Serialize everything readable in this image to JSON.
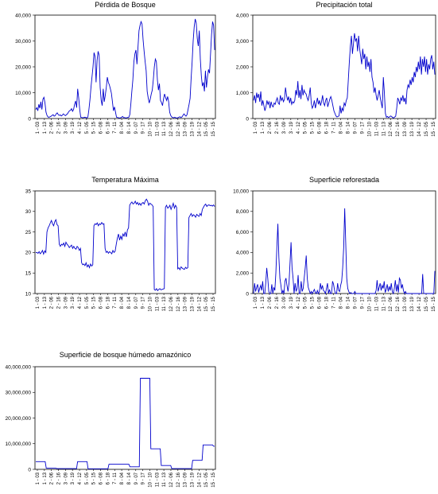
{
  "colors": {
    "series": "#0000cc",
    "axis": "#000000",
    "background": "#ffffff"
  },
  "x_tick_labels": [
    "1 - 03",
    "1 - 13",
    "2 - 06",
    "2 - 16",
    "3 - 09",
    "3 - 19",
    "4 - 12",
    "5 - 05",
    "5 - 15",
    "6 - 08",
    "6 - 18",
    "7 - 11",
    "8 - 04",
    "8 - 14",
    "9 - 07",
    "9 - 17",
    "10 - 10",
    "11 - 03",
    "11 - 13",
    "12 - 06",
    "12 - 16",
    "13 - 09",
    "13 - 19",
    "14 - 12",
    "15 - 05",
    "15 - 15"
  ],
  "chart_data": [
    {
      "type": "line",
      "title": "Pérdida de Bosque",
      "ylim": [
        0,
        40000
      ],
      "yticks": [
        0,
        10000,
        20000,
        30000,
        40000
      ],
      "ytick_labels": [
        "0",
        "10,000",
        "20,000",
        "30,000",
        "40,000"
      ],
      "series": [
        {
          "values": [
            3500,
            4200,
            3000,
            5500,
            4000,
            6500,
            3500,
            7500,
            8200,
            6000,
            2500,
            1200,
            600,
            500,
            700,
            900,
            1200,
            1500,
            900,
            1100,
            1800,
            2200,
            1500,
            1200,
            1400,
            1000,
            1300,
            1800,
            1400,
            1100,
            1500,
            1800,
            2500,
            3000,
            3200,
            3800,
            2800,
            3500,
            5500,
            6800,
            4200,
            11500,
            8000,
            3500,
            500,
            400,
            300,
            400,
            500,
            400,
            200,
            600,
            3500,
            7200,
            12000,
            16000,
            20000,
            25500,
            24000,
            14000,
            22500,
            26000,
            24500,
            12000,
            7000,
            5000,
            11500,
            6500,
            9000,
            12000,
            16000,
            14000,
            13000,
            11500,
            9800,
            6500,
            3000,
            4500,
            2500,
            500,
            400,
            300,
            200,
            300,
            500,
            800,
            300,
            400,
            200,
            300,
            400,
            500,
            1500,
            5500,
            10500,
            15000,
            22000,
            25000,
            26500,
            21000,
            27500,
            34000,
            36000,
            37500,
            36500,
            30500,
            26000,
            22000,
            18500,
            10500,
            8000,
            6000,
            7500,
            9500,
            11000,
            15000,
            20000,
            23000,
            22000,
            15000,
            11000,
            13500,
            7000,
            6200,
            5000,
            7500,
            9500,
            8200,
            7000,
            8500,
            6500,
            2500,
            1200,
            600,
            400,
            300,
            500,
            300,
            200,
            300,
            500,
            700,
            400,
            600,
            1200,
            1800,
            1300,
            900,
            1500,
            3500,
            5500,
            7800,
            15500,
            22000,
            30000,
            35500,
            38500,
            37000,
            31000,
            28000,
            34000,
            23000,
            16500,
            12500,
            14000,
            10500,
            18500,
            12000,
            16000,
            19000,
            17500,
            25000,
            32500,
            37500,
            36000,
            26500
          ]
        }
      ]
    },
    {
      "type": "line",
      "title": "Precipitación total",
      "ylim": [
        0,
        4000
      ],
      "yticks": [
        0,
        1000,
        2000,
        3000,
        4000
      ],
      "ytick_labels": [
        "0",
        "1,000",
        "2,000",
        "3,000",
        "4,000"
      ],
      "series": [
        {
          "values": [
            700,
            900,
            600,
            1000,
            800,
            950,
            650,
            1050,
            500,
            700,
            500,
            300,
            450,
            700,
            550,
            650,
            400,
            650,
            500,
            450,
            600,
            550,
            700,
            800,
            600,
            550,
            900,
            700,
            800,
            650,
            750,
            1200,
            900,
            700,
            850,
            600,
            800,
            550,
            650,
            600,
            700,
            1100,
            900,
            1450,
            800,
            1100,
            750,
            1300,
            900,
            1100,
            1000,
            950,
            800,
            700,
            900,
            1200,
            600,
            400,
            500,
            700,
            400,
            600,
            800,
            550,
            700,
            500,
            650,
            900,
            600,
            500,
            700,
            800,
            450,
            600,
            750,
            850,
            700,
            500,
            300,
            200,
            100,
            60,
            80,
            100,
            500,
            200,
            400,
            300,
            600,
            500,
            700,
            800,
            1500,
            2200,
            2800,
            3200,
            2500,
            2900,
            3300,
            3000,
            3100,
            2600,
            3200,
            2700,
            2400,
            2100,
            2700,
            2300,
            2500,
            1900,
            2400,
            2000,
            2200,
            1800,
            2300,
            1600,
            1400,
            1000,
            1200,
            900,
            700,
            900,
            1100,
            800,
            600,
            400,
            1600,
            1000,
            200,
            50,
            80,
            40,
            60,
            100,
            80,
            40,
            20,
            60,
            90,
            400,
            800,
            700,
            550,
            800,
            700,
            900,
            650,
            800,
            550,
            1100,
            1300,
            1200,
            1500,
            1300,
            1600,
            1400,
            1800,
            1600,
            2000,
            1800,
            2200,
            1900,
            2400,
            1700,
            2300,
            2000,
            2400,
            1800,
            2300,
            1700,
            2100,
            1900,
            2300,
            2450,
            1900,
            2200,
            1700
          ]
        }
      ]
    },
    {
      "type": "line",
      "title": "Temperatura Máxima",
      "ylim": [
        10,
        35
      ],
      "yticks": [
        10,
        15,
        20,
        25,
        30,
        35
      ],
      "ytick_labels": [
        "10",
        "15",
        "20",
        "25",
        "30",
        "35"
      ],
      "series": [
        {
          "values": [
            20,
            20,
            19.8,
            20.2,
            19.7,
            20,
            20.5,
            19.6,
            20.4,
            20,
            25,
            26,
            26.5,
            27.2,
            27.8,
            27,
            26.5,
            27.5,
            28,
            26.8,
            26.5,
            22,
            21.5,
            22,
            21.8,
            22.3,
            21.5,
            22.5,
            22,
            21.7,
            21.2,
            21.5,
            21.8,
            21,
            21.5,
            21,
            20.8,
            21.5,
            21.2,
            20.5,
            21,
            17.5,
            17,
            17.2,
            16.8,
            17.5,
            16.5,
            17,
            16.3,
            17.2,
            16.7,
            17,
            26.5,
            27,
            26.8,
            27.2,
            26.5,
            27,
            26.8,
            27.3,
            26.9,
            27,
            21,
            20,
            20.3,
            19.8,
            20.2,
            20,
            19.7,
            20.5,
            20,
            20.3,
            22,
            23.5,
            24.5,
            23,
            24,
            23.2,
            24.5,
            24,
            25,
            23.8,
            25.5,
            26,
            31.5,
            32,
            32.3,
            31.8,
            32,
            32.5,
            31.8,
            32.2,
            31.6,
            32,
            31.5,
            32,
            32.2,
            31.8,
            32.6,
            33,
            32.5,
            31.5,
            32,
            31.8,
            31.6,
            31.2,
            11,
            10.8,
            11.2,
            10.7,
            11,
            11.2,
            10.9,
            11,
            11.1,
            11.2,
            31,
            31.5,
            30.8,
            31,
            31.5,
            30.5,
            31.2,
            32,
            30.8,
            31.5,
            31,
            16,
            16.3,
            15.8,
            16.5,
            16.2,
            16,
            15.9,
            16.4,
            16.1,
            16.3,
            28.5,
            29,
            29.5,
            28.8,
            29.2,
            29,
            28.6,
            29.3,
            29,
            28.8,
            29.5,
            29,
            30.5,
            31,
            31.5,
            31.8,
            31.2,
            31.5,
            31.6,
            31.4,
            31.5,
            31.3,
            31.6,
            31.2
          ]
        }
      ]
    },
    {
      "type": "line",
      "title": "Superficie reforestada",
      "ylim": [
        0,
        10000
      ],
      "yticks": [
        0,
        2000,
        4000,
        6000,
        8000,
        10000
      ],
      "ytick_labels": [
        "0",
        "2,000",
        "4,000",
        "6,000",
        "8,000",
        "10,000"
      ],
      "series": [
        {
          "values": [
            0,
            1000,
            200,
            600,
            900,
            100,
            500,
            800,
            300,
            1200,
            0,
            0,
            1000,
            2500,
            1500,
            200,
            0,
            0,
            900,
            0,
            600,
            300,
            2000,
            4500,
            6800,
            3500,
            1500,
            800,
            0,
            300,
            0,
            1200,
            1500,
            800,
            200,
            1000,
            3000,
            5000,
            2500,
            1500,
            0,
            1000,
            200,
            500,
            1800,
            0,
            0,
            1200,
            200,
            500,
            1500,
            2500,
            3700,
            1500,
            600,
            300,
            0,
            200,
            0,
            200,
            400,
            100,
            0,
            300,
            0,
            200,
            1000,
            400,
            800,
            300,
            200,
            0,
            500,
            1000,
            0,
            400,
            0,
            0,
            1200,
            900,
            300,
            0,
            0,
            1000,
            300,
            200,
            800,
            1200,
            2500,
            4500,
            8300,
            5000,
            1500,
            500,
            200,
            0,
            100,
            0,
            0,
            0,
            200,
            0,
            0,
            0,
            0,
            0,
            0,
            0,
            0,
            0,
            0,
            0,
            0,
            0,
            0,
            0,
            0,
            0,
            0,
            0,
            0,
            300,
            1300,
            200,
            600,
            1000,
            300,
            800,
            500,
            1200,
            100,
            400,
            900,
            200,
            700,
            300,
            1000,
            200,
            0,
            500,
            1300,
            200,
            900,
            100,
            1500,
            1300,
            500,
            900,
            300,
            0,
            200,
            0,
            0,
            0,
            0,
            0,
            0,
            0,
            0,
            0,
            0,
            0,
            0,
            0,
            0,
            0,
            0,
            1900,
            0,
            0,
            0,
            0,
            0,
            0,
            0,
            0,
            0,
            0,
            0,
            2200
          ]
        }
      ]
    },
    {
      "type": "line",
      "title": "Superficie de bosque húmedo amazónico",
      "ylim": [
        0,
        40000000
      ],
      "yticks": [
        0,
        10000000,
        20000000,
        30000000,
        40000000
      ],
      "ytick_labels": [
        "0",
        "10,000,000",
        "20,000,000",
        "30,000,000",
        "40,000,000"
      ],
      "series": [
        {
          "values": [
            3000000,
            3000000,
            3000000,
            3000000,
            3000000,
            3000000,
            3000000,
            3000000,
            3000000,
            3000000,
            500000,
            500000,
            500000,
            500000,
            500000,
            500000,
            500000,
            500000,
            500000,
            500000,
            300000,
            300000,
            300000,
            300000,
            300000,
            300000,
            300000,
            300000,
            300000,
            300000,
            300000,
            300000,
            300000,
            300000,
            300000,
            300000,
            300000,
            300000,
            300000,
            300000,
            3000000,
            3000000,
            3000000,
            3000000,
            3000000,
            3000000,
            3000000,
            3000000,
            3000000,
            3000000,
            200000,
            200000,
            200000,
            200000,
            200000,
            200000,
            200000,
            200000,
            200000,
            200000,
            200000,
            200000,
            200000,
            200000,
            200000,
            200000,
            200000,
            200000,
            200000,
            200000,
            2000000,
            2000000,
            2000000,
            2000000,
            2000000,
            2000000,
            2000000,
            2000000,
            2000000,
            2000000,
            2000000,
            2000000,
            2000000,
            2000000,
            2000000,
            2000000,
            2000000,
            2000000,
            2000000,
            2000000,
            1000000,
            1000000,
            1000000,
            1000000,
            1000000,
            1000000,
            1000000,
            1000000,
            1000000,
            1000000,
            35500000,
            35500000,
            35500000,
            35500000,
            35500000,
            35500000,
            35500000,
            35500000,
            35500000,
            35500000,
            8000000,
            8000000,
            8000000,
            8000000,
            8000000,
            8000000,
            8000000,
            8000000,
            8000000,
            8000000,
            1500000,
            1500000,
            1500000,
            1500000,
            1500000,
            1500000,
            1500000,
            1500000,
            1500000,
            1500000,
            300000,
            300000,
            300000,
            300000,
            300000,
            300000,
            300000,
            300000,
            300000,
            300000,
            300000,
            300000,
            300000,
            300000,
            300000,
            300000,
            300000,
            300000,
            300000,
            300000,
            3500000,
            3500000,
            3500000,
            3500000,
            3500000,
            3500000,
            3500000,
            3500000,
            3500000,
            3500000,
            9500000,
            9500000,
            9500000,
            9500000,
            9500000,
            9500000,
            9500000,
            9500000,
            9500000,
            9500000,
            9000000,
            9000000
          ]
        }
      ]
    }
  ]
}
